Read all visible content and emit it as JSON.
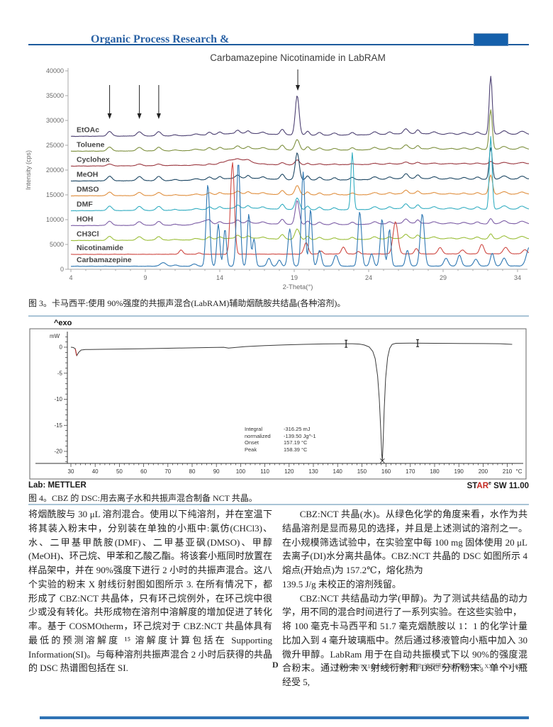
{
  "header": {
    "journal_title": "Organic Process Research &"
  },
  "figure3_caption": "图 3。卡马西平:使用 90%强度的共振声混合(LabRAM)辅助烟酰胺共结晶(各种溶剂)。",
  "figure4_caption": "图 4。CBZ 的 DSC:用去离子水和共振声混合制备 NCT 共晶。",
  "body": {
    "left": [
      "将烟酰胺与 30 μL 溶剂混合。使用以下纯溶剂，并在室温下将其装入粉末中，分别装在单独的小瓶中:氯仿(CHCl3)、水、二甲基甲酰胺(DMF)、二甲基亚砜(DMSO)、甲醇(MeOH)、环己烷、甲苯和乙酸乙酯。将该套小瓶同时放置在样品架中，并在 90%强度下进行 2 小时的共振声混合。这八个实验的粉末 X 射线衍射图如图所示 3. 在所有情况下，都形成了 CBZ:NCT 共晶体，只有环己烷例外，在环己烷中很少或没有转化。共形成物在溶剂中溶解度的增加促进了转化率。基于 COSMOtherm，环己烷对于 CBZ:NCT 共晶体具有最低的预测溶解度 ¹⁵ 溶解度计算包括在 Supporting Information(SI)。与每种溶剂共振声混合 2 小时后获得的共晶的 DSC 热谱图包括在 SI."
    ],
    "right": [
      "CBZ:NCT 共晶(水)。从绿色化学的角度来看，水作为共结晶溶剂是显而易见的选择，并且是上述测试的溶剂之一。在小规模筛选试验中，在实验室中每 100 mg 固体使用 20 μL 去离子(DI)水分离共晶体。CBZ:NCT 共晶的 DSC 如图所示 4 熔点(开始点)为 157.2℃，熔化热为",
      "139.5 J/g 未校正的溶剂残留。",
      "CBZ:NCT 共结晶动力学(甲醇)。为了测试共结晶的动力学，用不同的混合时间进行了一系列实验。在这些实验中，",
      "将 100 毫克卡马西平和 51.7 毫克烟酰胺以 1：1 的化学计量比加入到 4 毫升玻璃瓶中。然后通过移液管向小瓶中加入 30 微升甲醇。LabRam 用于在自动共振模式下以 90%的强度混合粉末。通过粉末 X 射线衍射和 DSC 分析粉末。单个小瓶经受 5,"
    ]
  },
  "footer": {
    "page_letter": "D",
    "doi_line": "dx.doi.org/10.1021/op4003399 | 组织. 流程研究与开发 XXXX, XXX, XXX−XXX"
  },
  "chart_data": [
    {
      "type": "line",
      "subtype": "xrpd-stacked-traces",
      "title": "Carbamazepine Nicotinamide in LabRAM",
      "xlabel": "2-Theta(°)",
      "ylabel": "Intensity (cps)",
      "xlim": [
        4,
        34.8
      ],
      "ylim": [
        0,
        40000
      ],
      "x_ticks": [
        4,
        9,
        14,
        19,
        24,
        29,
        34
      ],
      "y_ticks": [
        0,
        5000,
        10000,
        15000,
        20000,
        25000,
        30000,
        35000,
        40000
      ],
      "legend_position": "inline-left-labels",
      "grid": false,
      "arrows": {
        "minor": [
          6.6,
          8.6,
          9.9
        ],
        "major": [
          19.24
        ]
      },
      "base_peaks": [
        [
          6.6,
          950,
          0.16
        ],
        [
          8.6,
          850,
          0.17
        ],
        [
          9.9,
          850,
          0.16
        ],
        [
          11.0,
          200,
          0.15
        ],
        [
          12.4,
          300,
          0.2
        ],
        [
          13.3,
          550,
          0.14
        ],
        [
          14.0,
          480,
          0.13
        ],
        [
          15.2,
          650,
          0.14
        ],
        [
          15.9,
          520,
          0.12
        ],
        [
          16.9,
          350,
          0.15
        ],
        [
          18.2,
          1100,
          0.14
        ],
        [
          19.2,
          2500,
          0.15
        ],
        [
          19.9,
          800,
          0.12
        ],
        [
          20.7,
          550,
          0.14
        ],
        [
          21.7,
          420,
          0.15
        ],
        [
          22.9,
          500,
          0.14
        ],
        [
          24.4,
          550,
          0.18
        ],
        [
          25.4,
          420,
          0.14
        ],
        [
          26.5,
          950,
          0.15
        ],
        [
          27.3,
          750,
          0.12
        ],
        [
          28.4,
          420,
          0.18
        ],
        [
          29.5,
          250,
          0.2
        ],
        [
          30.4,
          380,
          0.18
        ],
        [
          31.3,
          480,
          0.15
        ],
        [
          32.2,
          1200,
          0.12
        ],
        [
          33.1,
          700,
          0.2
        ],
        [
          34.3,
          600,
          0.2
        ],
        [
          15.6,
          450,
          1.6
        ],
        [
          26.8,
          250,
          1.4
        ]
      ],
      "series": [
        {
          "name": "EtOAc",
          "color": "#4e4273",
          "baseline": 26800,
          "scale": 1.0,
          "drift": 14,
          "use_base": true,
          "extra_peaks": [
            [
              19.2,
              5500,
              0.12
            ],
            [
              32.2,
              10500,
              0.1
            ]
          ]
        },
        {
          "name": "Toluene",
          "color": "#7f9140",
          "baseline": 23800,
          "scale": 0.85,
          "drift": 13,
          "use_base": true,
          "extra_peaks": [
            [
              32.2,
              7000,
              0.1
            ]
          ]
        },
        {
          "name": "Cyclohex",
          "color": "#9c3a42",
          "baseline": 20800,
          "scale": 0.4,
          "drift": 16,
          "use_base": true,
          "extra_peaks": [
            [
              14.8,
              900,
              0.5
            ],
            [
              15.8,
              700,
              0.4
            ]
          ]
        },
        {
          "name": "MeOH",
          "color": "#1f4864",
          "baseline": 17800,
          "scale": 1.0,
          "drift": 12,
          "use_base": true,
          "extra_peaks": [
            [
              19.2,
              3000,
              0.12
            ],
            [
              32.2,
              5200,
              0.1
            ]
          ]
        },
        {
          "name": "DMSO",
          "color": "#e09040",
          "baseline": 14800,
          "scale": 0.75,
          "drift": 11,
          "use_base": true,
          "extra_peaks": [
            [
              32.2,
              3000,
              0.12
            ]
          ]
        },
        {
          "name": "DMF",
          "color": "#35aec2",
          "baseline": 11800,
          "scale": 0.95,
          "drift": 11,
          "use_base": true,
          "extra_peaks": [
            [
              22.9,
              11000,
              0.09
            ],
            [
              32.2,
              13500,
              0.09
            ]
          ]
        },
        {
          "name": "HOH",
          "color": "#7d5ea6",
          "baseline": 8800,
          "scale": 0.9,
          "drift": 12,
          "use_base": true,
          "extra_peaks": [
            [
              13.0,
              700,
              0.3
            ],
            [
              19.2,
              2600,
              0.12
            ]
          ]
        },
        {
          "name": "CH3Cl",
          "color": "#9cbf3b",
          "baseline": 5800,
          "scale": 0.85,
          "drift": 11,
          "use_base": true,
          "extra_peaks": []
        },
        {
          "name": "Nicotinamide",
          "color": "#cf4a44",
          "baseline": 3000,
          "scale": 0,
          "drift": 4,
          "use_base": false,
          "extra_peaks": [
            [
              11.4,
              900,
              0.12
            ],
            [
              12.6,
              250,
              0.12
            ],
            [
              14.85,
              18500,
              0.13
            ],
            [
              19.8,
              2300,
              0.14
            ],
            [
              20.8,
              600,
              0.12
            ],
            [
              22.3,
              1400,
              0.13
            ],
            [
              23.3,
              500,
              0.12
            ],
            [
              25.8,
              6500,
              0.16
            ],
            [
              27.2,
              1100,
              0.12
            ],
            [
              28.8,
              1300,
              0.14
            ],
            [
              30.3,
              800,
              0.14
            ],
            [
              31.6,
              1900,
              0.14
            ],
            [
              33.2,
              1300,
              0.16
            ],
            [
              34.5,
              800,
              0.16
            ]
          ]
        },
        {
          "name": "Carbamazepine",
          "color": "#2f78b3",
          "baseline": 600,
          "scale": 0,
          "drift": 2,
          "use_base": false,
          "extra_peaks": [
            [
              10.2,
              700,
              0.2
            ],
            [
              11.0,
              250,
              0.15
            ],
            [
              12.3,
              450,
              0.15
            ],
            [
              13.2,
              16500,
              0.12
            ],
            [
              13.9,
              8500,
              0.1
            ],
            [
              14.35,
              7500,
              0.1
            ],
            [
              15.25,
              21000,
              0.12
            ],
            [
              15.95,
              10500,
              0.1
            ],
            [
              16.3,
              5500,
              0.1
            ],
            [
              17.3,
              1600,
              0.12
            ],
            [
              18.0,
              1200,
              0.12
            ],
            [
              18.7,
              7500,
              0.12
            ],
            [
              19.6,
              19000,
              0.12
            ],
            [
              20.1,
              11500,
              0.1
            ],
            [
              20.7,
              3200,
              0.12
            ],
            [
              21.8,
              2200,
              0.14
            ],
            [
              23.4,
              11000,
              0.12
            ],
            [
              24.2,
              2500,
              0.12
            ],
            [
              24.9,
              9500,
              0.12
            ],
            [
              25.4,
              7500,
              0.1
            ],
            [
              26.6,
              3200,
              0.12
            ],
            [
              27.6,
              10500,
              0.14
            ],
            [
              29.2,
              1600,
              0.14
            ],
            [
              30.1,
              2200,
              0.13
            ],
            [
              31.2,
              1400,
              0.14
            ],
            [
              32.3,
              2600,
              0.12
            ],
            [
              33.1,
              1600,
              0.14
            ],
            [
              34.8,
              3800,
              0.2
            ]
          ]
        }
      ]
    },
    {
      "type": "line",
      "subtype": "dsc-thermogram",
      "exo_label": "^exo",
      "ylabel": "mW",
      "x_unit": "°C",
      "x_ticks": [
        30,
        40,
        50,
        60,
        70,
        80,
        90,
        100,
        110,
        120,
        130,
        140,
        150,
        160,
        170,
        180,
        190,
        200,
        210
      ],
      "y_ticks": [
        0,
        -5,
        -10,
        -15,
        -20
      ],
      "markers": [
        [
          143.5,
          0.66
        ],
        [
          173,
          0.78
        ]
      ],
      "peak_marker": [
        158.45,
        -21.8
      ],
      "annotation": [
        {
          "label": "Integral",
          "value": "-316.25 mJ"
        },
        {
          "label": "normalized",
          "value": "-139.50 Jg^-1"
        },
        {
          "label": "Onset",
          "value": "157.19 °C"
        },
        {
          "label": "Peak",
          "value": "158.39 °C"
        }
      ],
      "footer_left": "Lab: METTLER",
      "star": {
        "prefix": "ST",
        "red": "AR",
        "sup": "e",
        "suffix": " SW 11.00"
      },
      "curve_points": [
        [
          30,
          0
        ],
        [
          31,
          -0.05
        ],
        [
          31.8,
          -0.3
        ],
        [
          32.4,
          -1.65
        ],
        [
          33.2,
          -1.0
        ],
        [
          34.2,
          -0.55
        ],
        [
          36,
          -0.45
        ],
        [
          40,
          -0.42
        ],
        [
          50,
          -0.35
        ],
        [
          60,
          -0.28
        ],
        [
          70,
          -0.2
        ],
        [
          80,
          -0.12
        ],
        [
          88,
          -0.05
        ],
        [
          93,
          -0.02
        ],
        [
          95,
          -0.18
        ],
        [
          97,
          -0.08
        ],
        [
          102,
          0.12
        ],
        [
          110,
          0.3
        ],
        [
          118,
          0.45
        ],
        [
          126,
          0.55
        ],
        [
          134,
          0.62
        ],
        [
          142,
          0.66
        ],
        [
          146,
          0.66
        ],
        [
          149,
          0.6
        ],
        [
          151,
          0.42
        ],
        [
          153,
          0.05
        ],
        [
          154.5,
          -0.8
        ],
        [
          155.5,
          -2.2
        ],
        [
          156.5,
          -5.5
        ],
        [
          157.2,
          -10
        ],
        [
          157.8,
          -16
        ],
        [
          158.2,
          -20.5
        ],
        [
          158.45,
          -21.8
        ],
        [
          158.7,
          -19
        ],
        [
          159.2,
          -12
        ],
        [
          159.8,
          -6
        ],
        [
          160.6,
          -2
        ],
        [
          161.5,
          -0.2
        ],
        [
          162.5,
          0.55
        ],
        [
          164,
          0.75
        ],
        [
          170,
          0.78
        ],
        [
          180,
          0.75
        ],
        [
          190,
          0.72
        ],
        [
          200,
          0.7
        ],
        [
          207,
          0.66
        ],
        [
          212,
          0.55
        ]
      ]
    }
  ]
}
